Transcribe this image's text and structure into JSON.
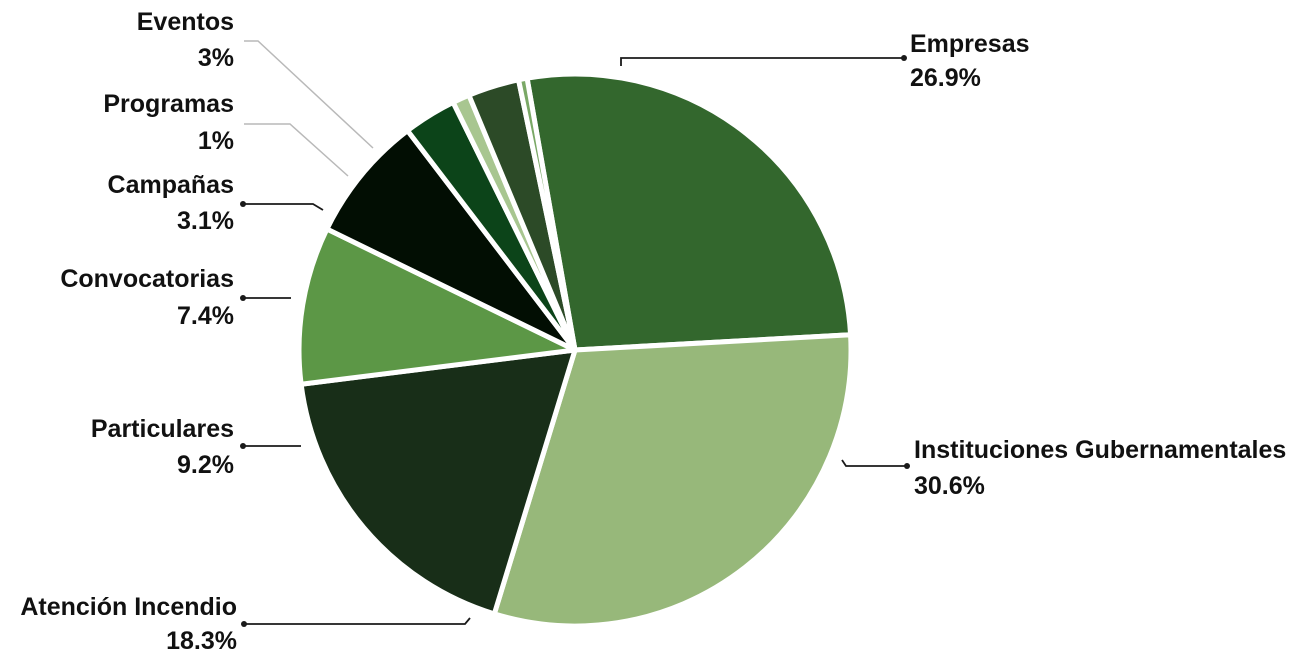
{
  "chart_data": {
    "type": "pie",
    "title": "",
    "start_angle_deg": -10,
    "direction": "clockwise",
    "slices": [
      {
        "label": "Empresas",
        "value_text": "26.9%",
        "value": 26.9,
        "color": "#33672d"
      },
      {
        "label": "Instituciones Gubernamentales",
        "value_text": "30.6%",
        "value": 30.6,
        "color": "#97b87a"
      },
      {
        "label": "Atención Incendio",
        "value_text": "18.3%",
        "value": 18.3,
        "color": "#182e18"
      },
      {
        "label": "Particulares",
        "value_text": "9.2%",
        "value": 9.2,
        "color": "#5c9746"
      },
      {
        "label": "Convocatorias",
        "value_text": "7.4%",
        "value": 7.4,
        "color": "#020e03"
      },
      {
        "label": "Campañas",
        "value_text": "3.1%",
        "value": 3.1,
        "color": "#0c4419"
      },
      {
        "label": "Programas",
        "value_text": "1%",
        "value": 1,
        "color": "#a8c690"
      },
      {
        "label": "Eventos",
        "value_text": "3%",
        "value": 3,
        "color": "#2c4a27"
      },
      {
        "label": "",
        "value_text": "",
        "value": 0.5,
        "color": "#7aa866"
      }
    ]
  }
}
